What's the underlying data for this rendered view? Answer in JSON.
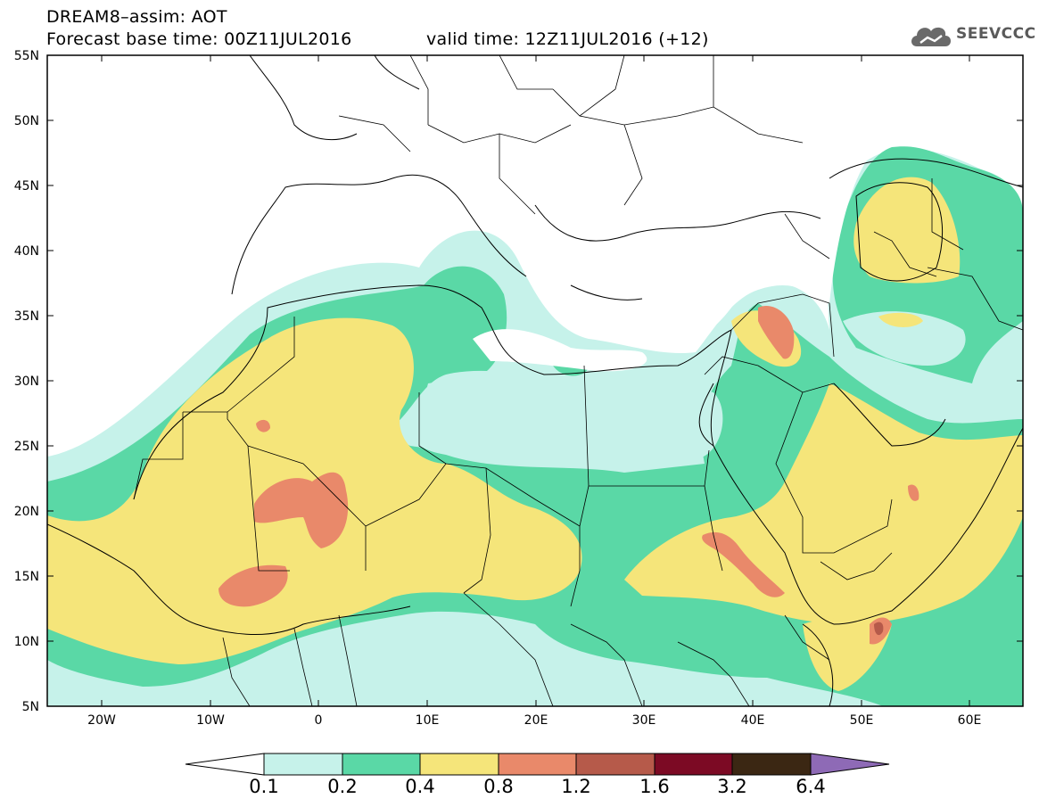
{
  "title": {
    "line1": "DREAM8–assim: AOT",
    "base_time": "Forecast base time: 00Z11JUL2016",
    "valid_time": "valid time: 12Z11JUL2016 (+12)"
  },
  "logo": {
    "text": "SEEVCCC",
    "icon": "cloud-icon"
  },
  "axes": {
    "lat_labels": [
      "55N",
      "50N",
      "45N",
      "40N",
      "35N",
      "30N",
      "25N",
      "20N",
      "15N",
      "10N",
      "5N"
    ],
    "lon_labels": [
      "20W",
      "10W",
      "0",
      "10E",
      "20E",
      "30E",
      "40E",
      "50E",
      "60E"
    ]
  },
  "colorbar": {
    "levels": [
      "0.1",
      "0.2",
      "0.4",
      "0.8",
      "1.2",
      "1.6",
      "3.2",
      "6.4"
    ],
    "colors": [
      "#c6f2ea",
      "#5ad8a6",
      "#f5e57a",
      "#e9896a",
      "#b65a4a",
      "#7c0a24",
      "#3b2713",
      "#8e6ab6"
    ]
  },
  "palette": {
    "l1": "#c6f2ea",
    "l2": "#5ad8a6",
    "l3": "#f5e57a",
    "l4": "#e9896a"
  }
}
